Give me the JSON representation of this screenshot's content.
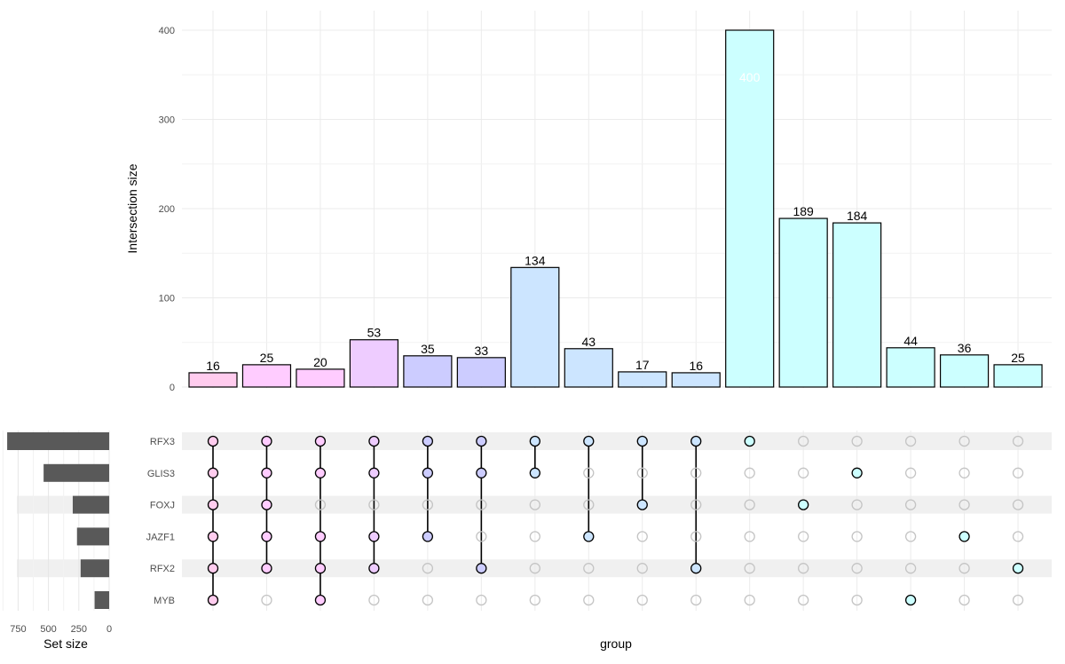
{
  "chart_data": {
    "type": "upset",
    "ylabel": "Intersection size",
    "xlabel": "group",
    "set_size_label": "Set size",
    "yticks": [
      0,
      100,
      200,
      300,
      400
    ],
    "ylim": [
      0,
      420
    ],
    "set_size_ticks": [
      750,
      500,
      250,
      0
    ],
    "set_size_ticks_text": [
      "750",
      "500",
      "250",
      "0"
    ],
    "set_size_xlim": [
      0,
      900
    ],
    "sets": [
      "RFX3",
      "GLIS3",
      "FOXJ",
      "JAZF1",
      "RFX2",
      "MYB"
    ],
    "set_sizes": [
      840,
      540,
      300,
      265,
      235,
      120
    ],
    "values": [
      16,
      25,
      20,
      53,
      35,
      33,
      134,
      43,
      17,
      16,
      400,
      189,
      184,
      44,
      36,
      25
    ],
    "memberships": [
      [
        1,
        1,
        1,
        1,
        1,
        1
      ],
      [
        1,
        1,
        1,
        1,
        1,
        0
      ],
      [
        1,
        1,
        0,
        1,
        1,
        1
      ],
      [
        1,
        1,
        0,
        1,
        1,
        0
      ],
      [
        1,
        1,
        0,
        1,
        0,
        0
      ],
      [
        1,
        1,
        0,
        0,
        1,
        0
      ],
      [
        1,
        1,
        0,
        0,
        0,
        0
      ],
      [
        1,
        0,
        0,
        1,
        0,
        0
      ],
      [
        1,
        0,
        1,
        0,
        0,
        0
      ],
      [
        1,
        0,
        0,
        0,
        1,
        0
      ],
      [
        1,
        0,
        0,
        0,
        0,
        0
      ],
      [
        0,
        0,
        1,
        0,
        0,
        0
      ],
      [
        0,
        1,
        0,
        0,
        0,
        0
      ],
      [
        0,
        0,
        0,
        0,
        0,
        1
      ],
      [
        0,
        0,
        0,
        1,
        0,
        0
      ],
      [
        0,
        0,
        0,
        0,
        1,
        0
      ]
    ],
    "bar_colors": [
      "#ffccee",
      "#ffccff",
      "#ffccff",
      "#eeccff",
      "#ccccff",
      "#ccccff",
      "#cce5ff",
      "#cce5ff",
      "#cce5ff",
      "#cce5ff",
      "#ccffff",
      "#ccffff",
      "#ccffff",
      "#ccffff",
      "#ccffff",
      "#ccffff"
    ],
    "label_inside_index": 10
  }
}
